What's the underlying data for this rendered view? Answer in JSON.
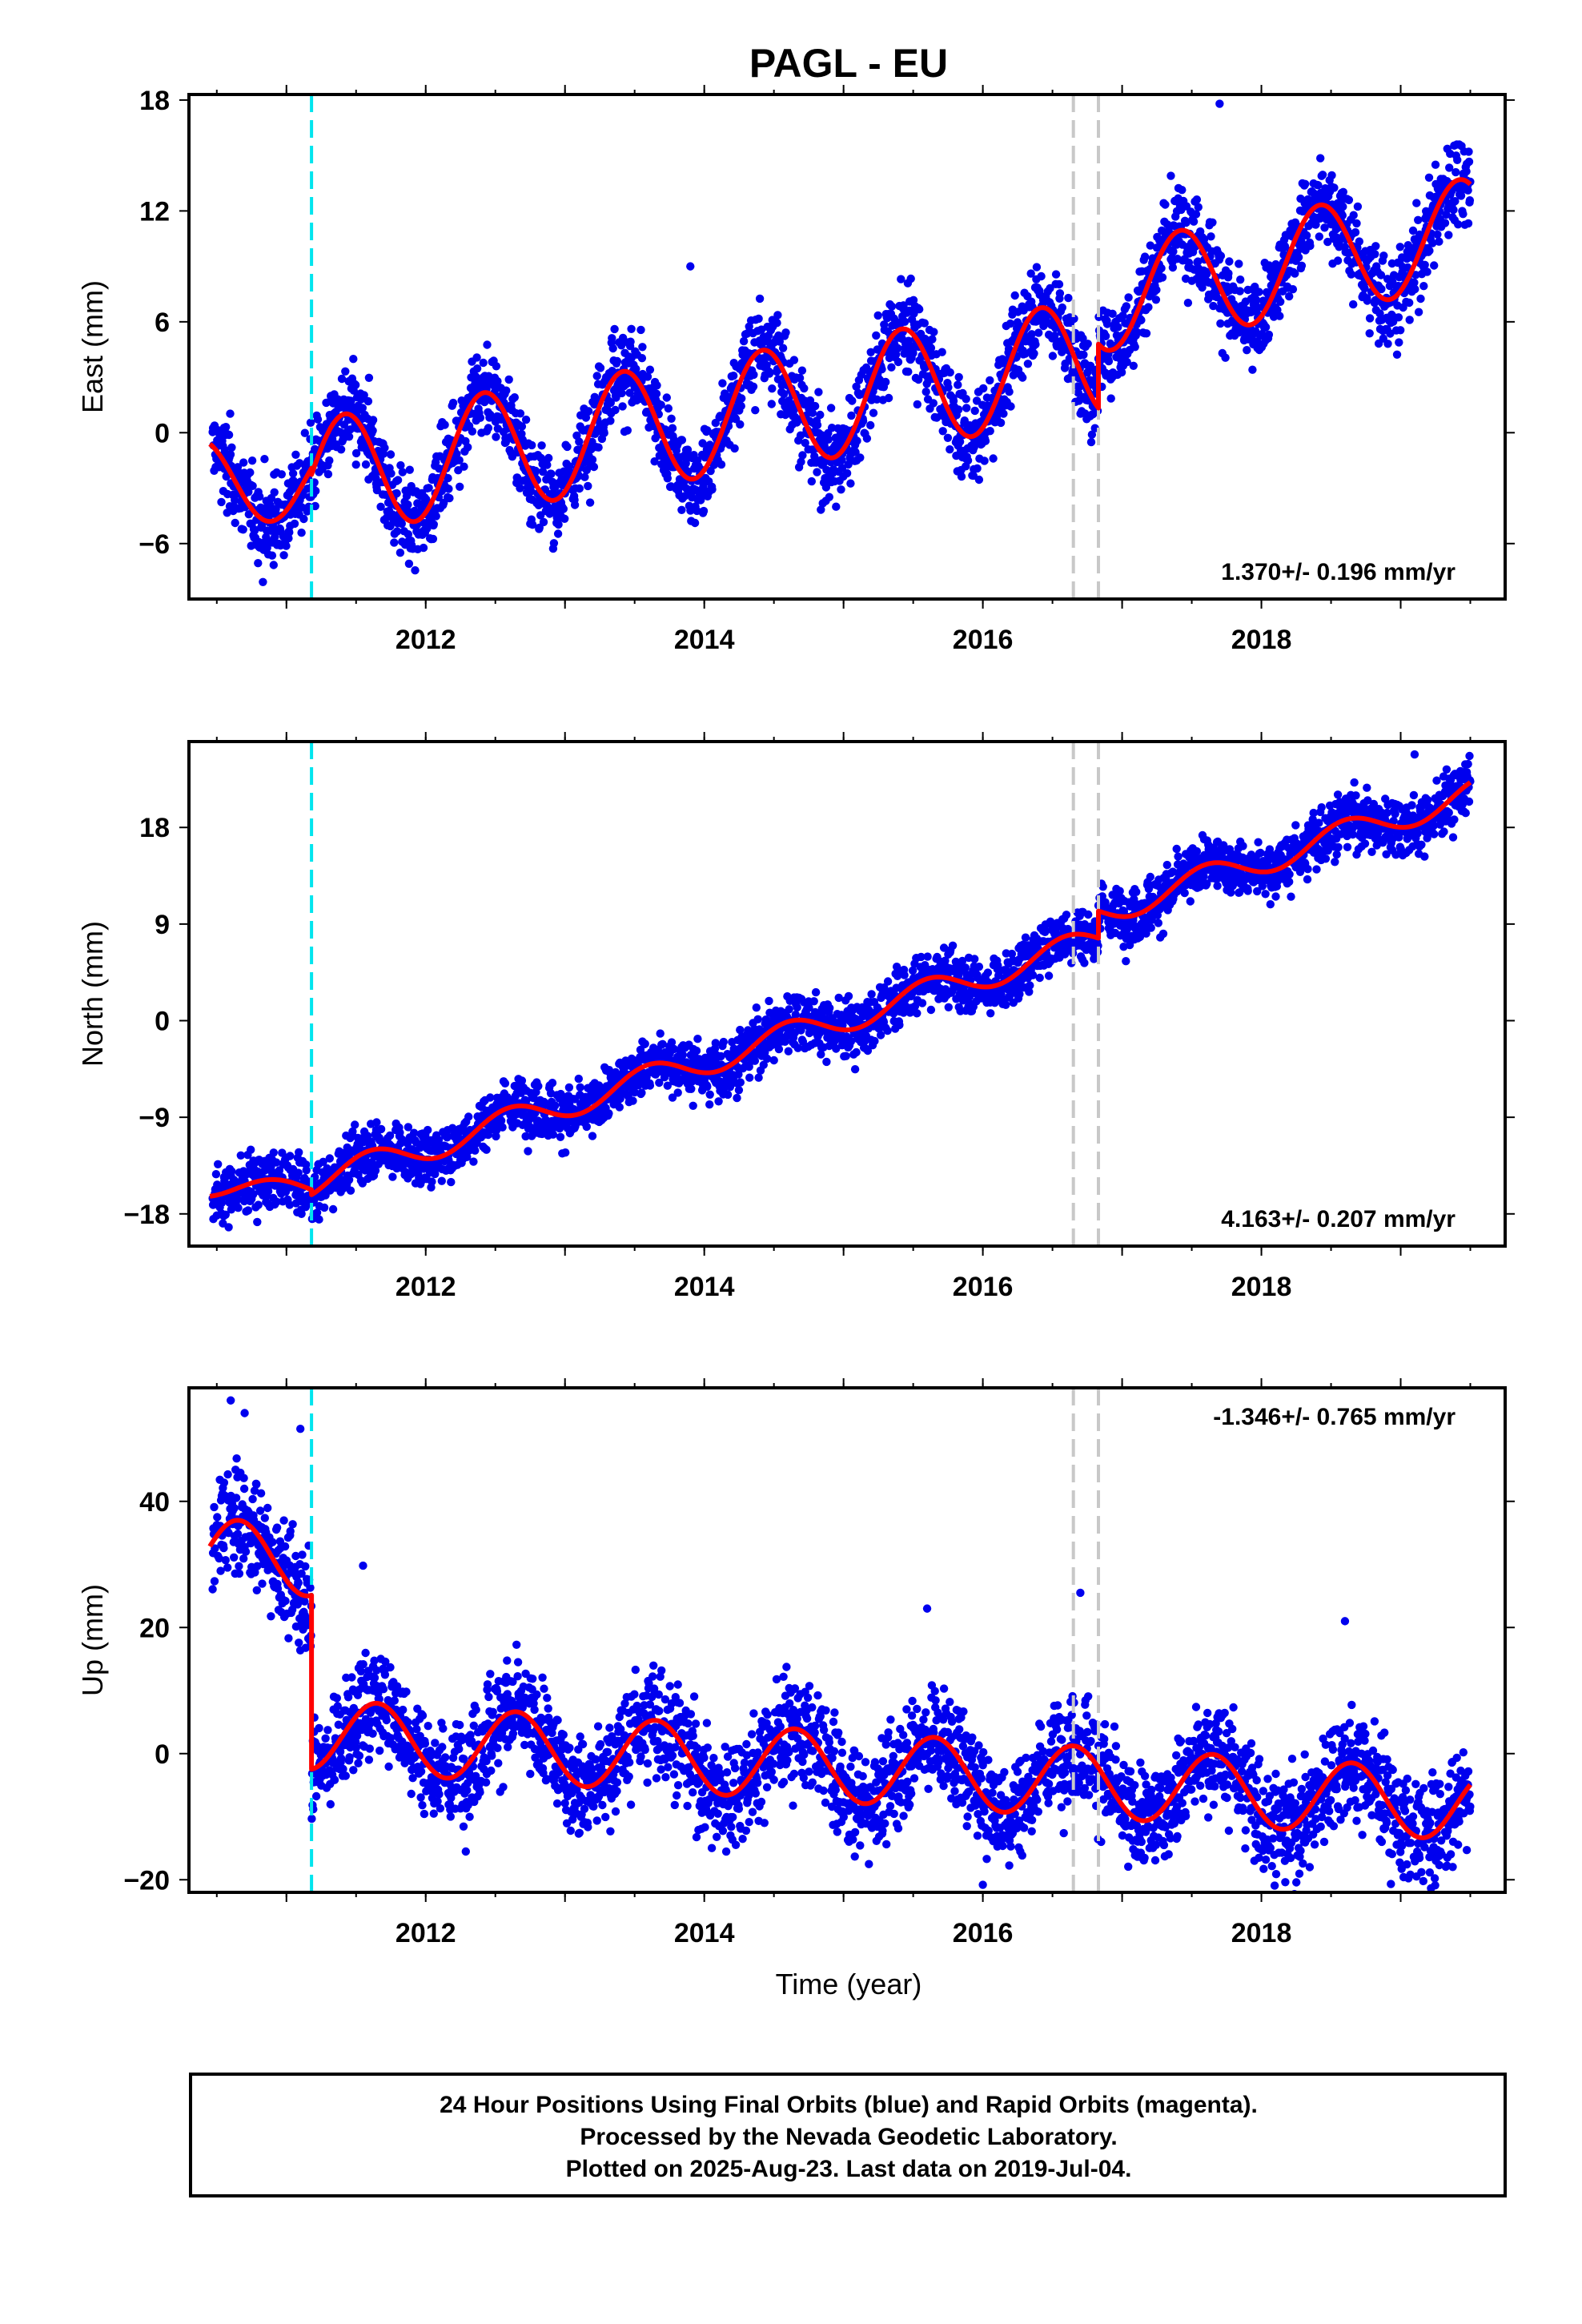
{
  "title": "PAGL - EU",
  "xlabel": "Time (year)",
  "caption": {
    "line1": "24 Hour Positions Using Final Orbits (blue) and Rapid Orbits (magenta).",
    "line2": "Processed by the Nevada Geodetic Laboratory.",
    "line3": "Plotted on 2025-Aug-23. Last data on 2019-Jul-04."
  },
  "colors": {
    "points": "#0000ee",
    "fit": "#ff0000",
    "equipment_change": "#00e5ee",
    "other_event": "#c8c8c8"
  },
  "chart_data": [
    {
      "type": "scatter",
      "ylabel": "East (mm)",
      "xlim": [
        2010.3,
        2019.75
      ],
      "ylim": [
        -9,
        18.3
      ],
      "xticks": [
        2012,
        2014,
        2016,
        2018
      ],
      "yticks": [
        -6,
        0,
        6,
        12,
        18
      ],
      "rate": "1.370+/- 0.196 mm/yr",
      "rate_position": "bottom-right",
      "event_lines": [
        {
          "x": 2011.18,
          "kind": "equipment_change"
        },
        {
          "x": 2016.65,
          "kind": "other_event"
        },
        {
          "x": 2016.83,
          "kind": "other_event"
        }
      ],
      "fit_model": {
        "segments": [
          {
            "x0": 2010.45,
            "x1": 2011.18,
            "offset": -2.6,
            "rate": 0.0,
            "amp": 2.2,
            "peak": 2010.38
          },
          {
            "x0": 2011.18,
            "x1": 2016.83,
            "offset": -3.3,
            "rate": 1.15,
            "amp": 3.2,
            "peak": 2011.42
          },
          {
            "x0": 2016.83,
            "x1": 2019.5,
            "offset": -3.3,
            "rate": 1.37,
            "amp": 2.9,
            "peak": 2011.42
          }
        ],
        "segment_shifts": [
          0,
          0,
          1.8
        ],
        "noise_sd": 1.2
      },
      "outliers": [
        {
          "x": 2013.9,
          "y": 9.0
        },
        {
          "x": 2017.7,
          "y": 17.8
        },
        {
          "x": 2017.35,
          "y": 13.9
        },
        {
          "x": 2019.25,
          "y": 14.5
        }
      ]
    },
    {
      "type": "scatter",
      "ylabel": "North (mm)",
      "xlim": [
        2010.3,
        2019.75
      ],
      "ylim": [
        -21,
        26
      ],
      "xticks": [
        2012,
        2014,
        2016,
        2018
      ],
      "yticks": [
        -18,
        -9,
        0,
        9,
        18
      ],
      "rate": "4.163+/- 0.207 mm/yr",
      "rate_position": "bottom-right",
      "event_lines": [
        {
          "x": 2011.18,
          "kind": "equipment_change"
        },
        {
          "x": 2016.65,
          "kind": "other_event"
        },
        {
          "x": 2016.83,
          "kind": "other_event"
        }
      ],
      "fit_model": {
        "segments": [
          {
            "x0": 2010.45,
            "x1": 2011.18,
            "offset": -15.6,
            "rate": 0.0,
            "amp": 0.8,
            "peak": 2010.9
          },
          {
            "x0": 2011.18,
            "x1": 2016.83,
            "offset": -16.5,
            "rate": 4.0,
            "amp": 1.3,
            "peak": 2011.6
          },
          {
            "x0": 2016.83,
            "x1": 2019.5,
            "offset": -16.5,
            "rate": 4.16,
            "amp": 1.3,
            "peak": 2011.6
          }
        ],
        "segment_shifts": [
          0,
          -1.5,
          0
        ],
        "noise_sd": 1.3
      },
      "outliers": [
        {
          "x": 2019.1,
          "y": 24.8
        }
      ]
    },
    {
      "type": "scatter",
      "ylabel": "Up (mm)",
      "xlim": [
        2010.3,
        2019.75
      ],
      "ylim": [
        -22,
        58
      ],
      "xticks": [
        2012,
        2014,
        2016,
        2018
      ],
      "yticks": [
        -20,
        0,
        20,
        40
      ],
      "rate": "-1.346+/- 0.765 mm/yr",
      "rate_position": "top-right",
      "event_lines": [
        {
          "x": 2011.18,
          "kind": "equipment_change"
        },
        {
          "x": 2016.65,
          "kind": "other_event"
        },
        {
          "x": 2016.83,
          "kind": "other_event"
        }
      ],
      "fit_model": {
        "segments": [
          {
            "x0": 2010.45,
            "x1": 2011.18,
            "offset": 31.0,
            "rate": 0.0,
            "amp": 6.0,
            "peak": 2010.65
          },
          {
            "x0": 2011.18,
            "x1": 2016.83,
            "offset": 4.0,
            "rate": -1.35,
            "amp": 5.6,
            "peak": 2011.65
          },
          {
            "x0": 2016.83,
            "x1": 2019.5,
            "offset": 4.0,
            "rate": -1.35,
            "amp": 5.6,
            "peak": 2011.65
          }
        ],
        "segment_shifts": [
          0,
          0,
          0
        ],
        "noise_sd": 4.2
      },
      "outliers": [
        {
          "x": 2010.6,
          "y": 56.0
        },
        {
          "x": 2010.7,
          "y": 54.0
        },
        {
          "x": 2011.1,
          "y": 51.5
        },
        {
          "x": 2016.7,
          "y": 25.5
        },
        {
          "x": 2011.55,
          "y": 29.8
        },
        {
          "x": 2015.6,
          "y": 23.0
        },
        {
          "x": 2016.0,
          "y": -20.8
        },
        {
          "x": 2018.6,
          "y": 21.0
        }
      ]
    }
  ]
}
